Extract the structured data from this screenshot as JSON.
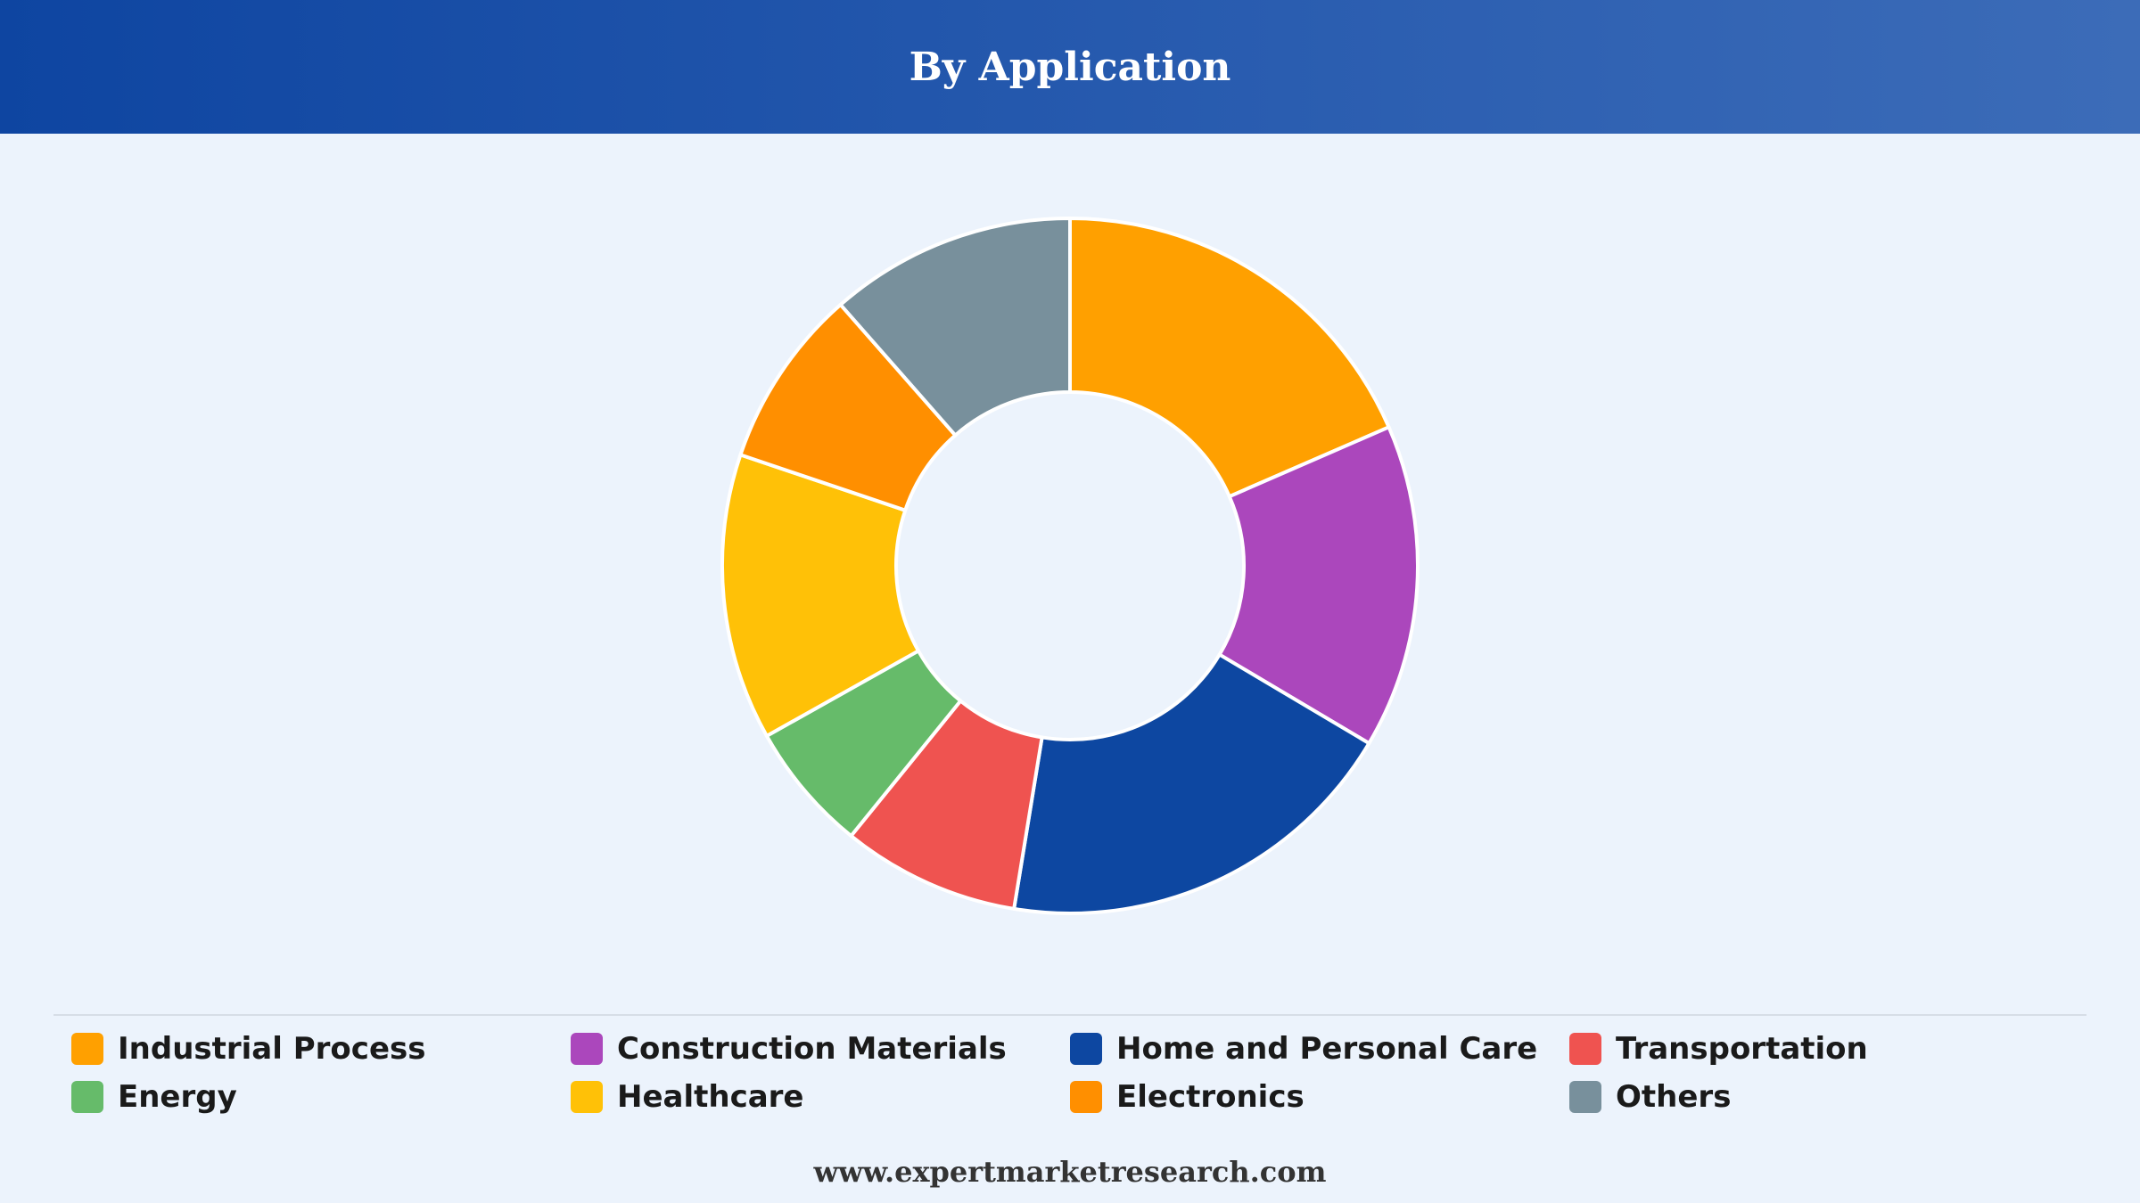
{
  "header": {
    "title": "By Application"
  },
  "footer": {
    "website": "www.expertmarketresearch.com"
  },
  "chart_data": {
    "type": "pie",
    "variant": "donut",
    "title": "By Application",
    "categories": [
      "Industrial Process",
      "Construction Materials",
      "Home and Personal Care",
      "Transportation",
      "Energy",
      "Healthcare",
      "Electronics",
      "Others"
    ],
    "values": [
      19.0,
      15.5,
      19.6,
      8.5,
      6.2,
      13.7,
      8.6,
      11.8
    ],
    "colors": [
      "#ffa000",
      "#ab47bc",
      "#0d47a1",
      "#ef5350",
      "#66bb6a",
      "#ffc107",
      "#ff8f00",
      "#78909c"
    ],
    "legend_position": "bottom"
  }
}
